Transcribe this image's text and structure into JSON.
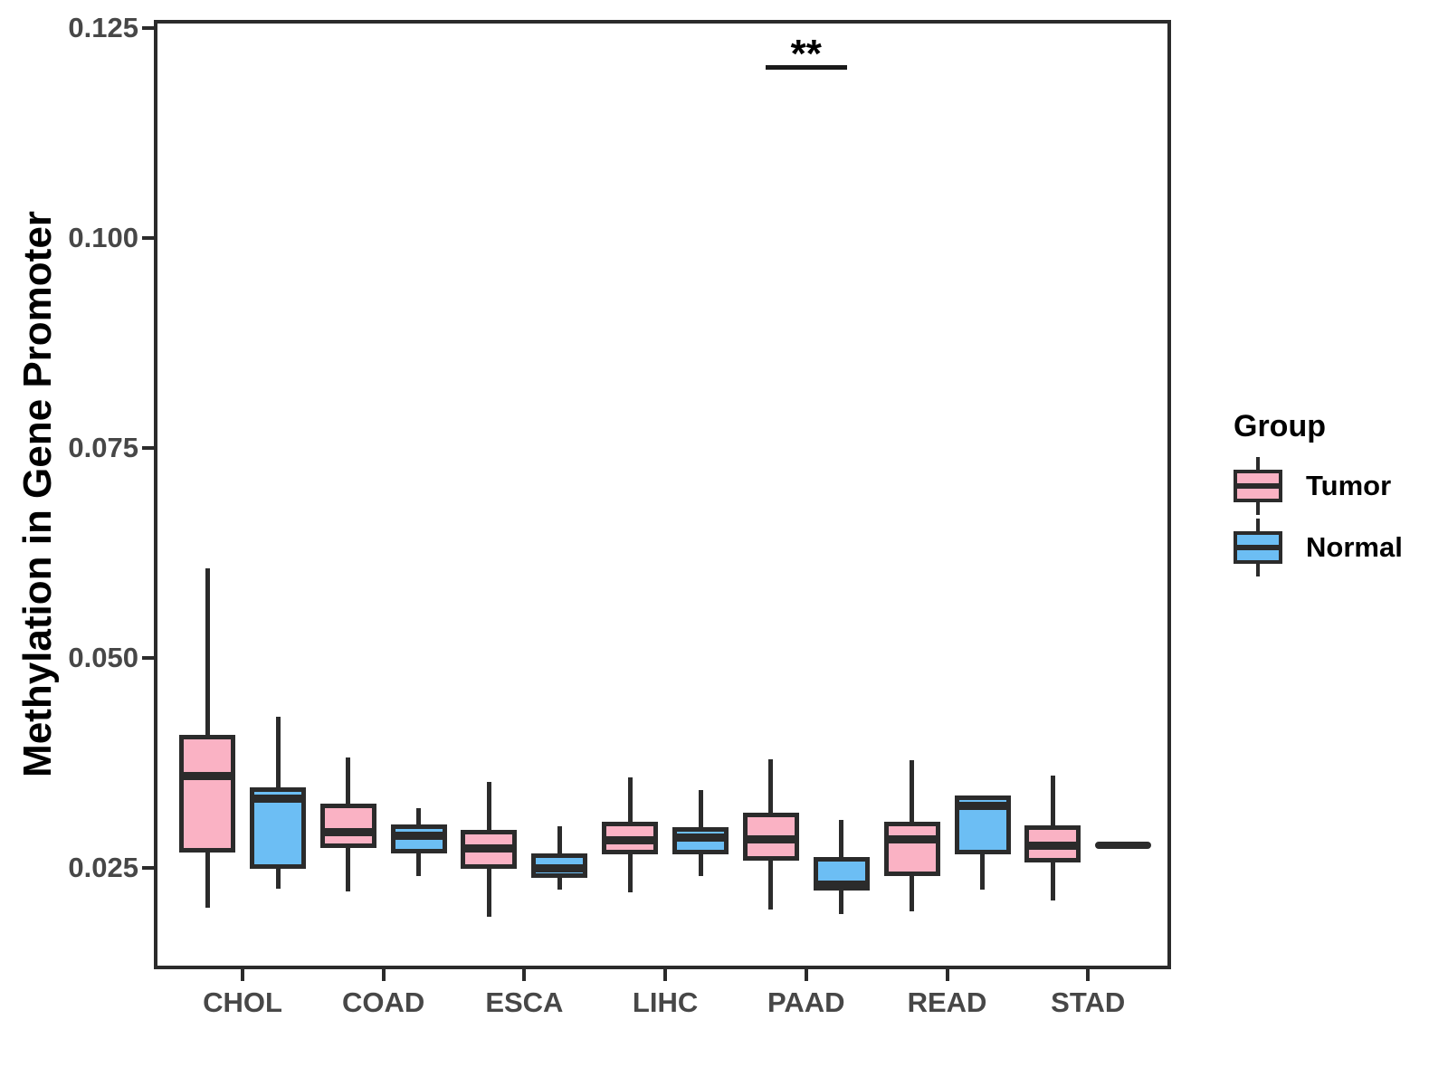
{
  "chart_data": {
    "type": "boxplot",
    "title": "",
    "xlabel": "",
    "ylabel": "Methylation in Gene Promoter",
    "legend_title": "Group",
    "categories": [
      "CHOL",
      "COAD",
      "ESCA",
      "LIHC",
      "PAAD",
      "READ",
      "STAD"
    ],
    "groups": [
      {
        "name": "Tumor",
        "fill": "#FAB2C4"
      },
      {
        "name": "Normal",
        "fill": "#6CBEF4"
      }
    ],
    "stroke_color": "#2B2B2B",
    "axis_text_color": "#474747",
    "ylim": [
      0.0129,
      0.126
    ],
    "yticks": [
      {
        "value": 0.025,
        "label": "0.025"
      },
      {
        "value": 0.05,
        "label": "0.050"
      },
      {
        "value": 0.075,
        "label": "0.075"
      },
      {
        "value": 0.1,
        "label": "0.100"
      },
      {
        "value": 0.125,
        "label": "0.125"
      }
    ],
    "grid": "off",
    "legend_position": "right",
    "boxes": [
      {
        "category": "CHOL",
        "group": "Tumor",
        "min": 0.0202,
        "q1": 0.0268,
        "median": 0.0359,
        "q3": 0.0408,
        "max": 0.0607
      },
      {
        "category": "CHOL",
        "group": "Normal",
        "min": 0.0225,
        "q1": 0.0249,
        "median": 0.0332,
        "q3": 0.0346,
        "max": 0.043
      },
      {
        "category": "COAD",
        "group": "Tumor",
        "min": 0.0222,
        "q1": 0.0274,
        "median": 0.0292,
        "q3": 0.0326,
        "max": 0.0381
      },
      {
        "category": "COAD",
        "group": "Normal",
        "min": 0.024,
        "q1": 0.0267,
        "median": 0.0288,
        "q3": 0.0302,
        "max": 0.0321
      },
      {
        "category": "ESCA",
        "group": "Tumor",
        "min": 0.0192,
        "q1": 0.0249,
        "median": 0.0273,
        "q3": 0.0295,
        "max": 0.0352
      },
      {
        "category": "ESCA",
        "group": "Normal",
        "min": 0.0224,
        "q1": 0.0238,
        "median": 0.0249,
        "q3": 0.0267,
        "max": 0.0299
      },
      {
        "category": "LIHC",
        "group": "Tumor",
        "min": 0.0221,
        "q1": 0.0266,
        "median": 0.0283,
        "q3": 0.0305,
        "max": 0.0358
      },
      {
        "category": "LIHC",
        "group": "Normal",
        "min": 0.024,
        "q1": 0.0266,
        "median": 0.0286,
        "q3": 0.0298,
        "max": 0.0342
      },
      {
        "category": "PAAD",
        "group": "Tumor",
        "min": 0.02,
        "q1": 0.0258,
        "median": 0.0284,
        "q3": 0.0315,
        "max": 0.0379
      },
      {
        "category": "PAAD",
        "group": "Normal",
        "min": 0.0195,
        "q1": 0.0223,
        "median": 0.023,
        "q3": 0.0263,
        "max": 0.0307
      },
      {
        "category": "READ",
        "group": "Tumor",
        "min": 0.0198,
        "q1": 0.024,
        "median": 0.0284,
        "q3": 0.0305,
        "max": 0.0378
      },
      {
        "category": "READ",
        "group": "Normal",
        "min": 0.0224,
        "q1": 0.0266,
        "median": 0.0324,
        "q3": 0.0336,
        "max": 0.0336
      },
      {
        "category": "STAD",
        "group": "Tumor",
        "min": 0.0211,
        "q1": 0.0256,
        "median": 0.0276,
        "q3": 0.03,
        "max": 0.036
      },
      {
        "category": "STAD",
        "group": "Normal",
        "min": 0.0277,
        "q1": 0.0277,
        "median": 0.0277,
        "q3": 0.0277,
        "max": 0.0277
      }
    ],
    "significance": {
      "category": "PAAD",
      "label": "**",
      "bar_y": 0.1203,
      "spans": [
        "Tumor",
        "Normal"
      ]
    }
  }
}
